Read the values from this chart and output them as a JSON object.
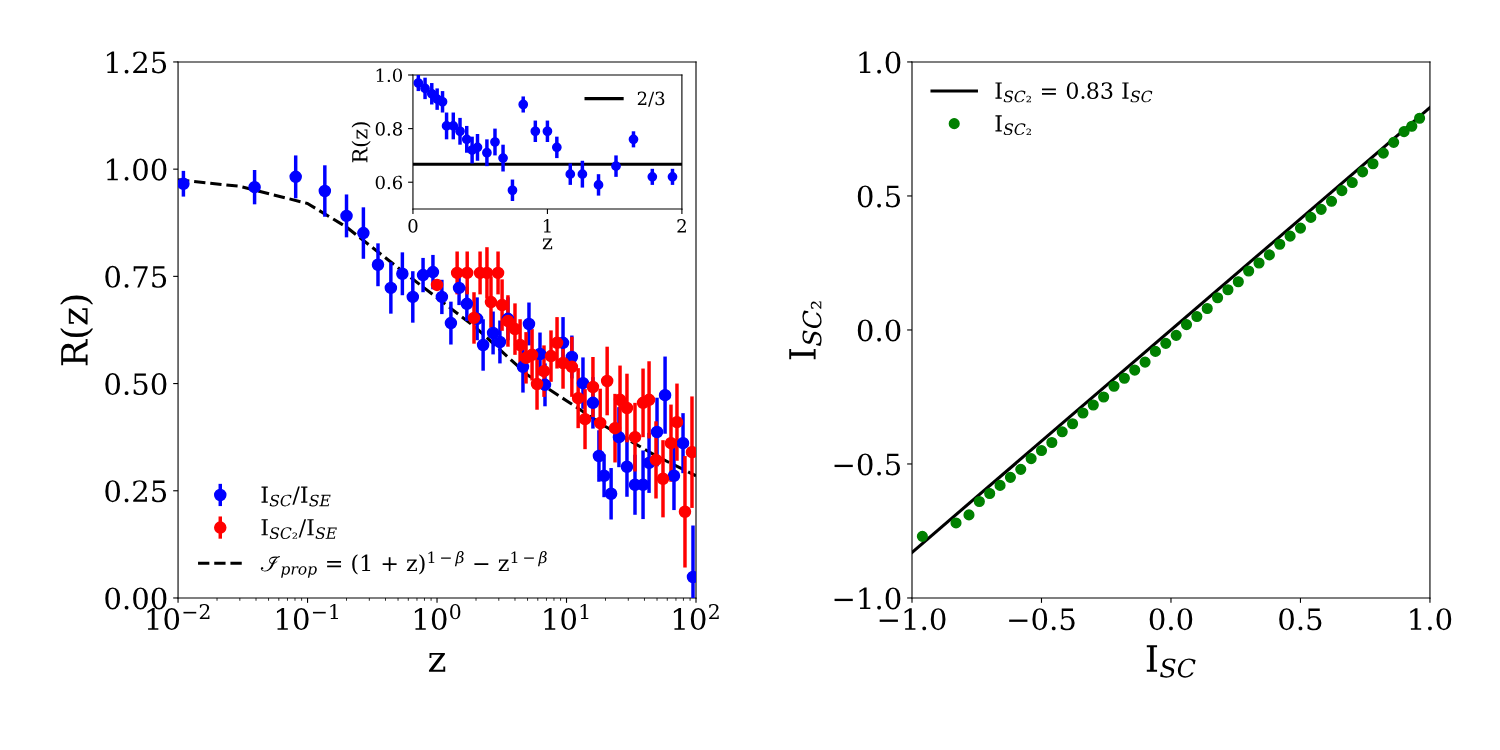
{
  "chart_data": [
    {
      "type": "scatter",
      "xlabel": "z",
      "ylabel": "R(z)",
      "log": "x",
      "legend": "bottom left",
      "marker": "circle",
      "xlim": [
        0.01,
        100
      ],
      "xticks": [
        {
          "value": 0.01,
          "label": "10$^{−2}$"
        },
        {
          "value": 0.1,
          "label": "10$^{−1}$"
        },
        {
          "value": 1,
          "label": "10$^{0}$"
        },
        {
          "value": 10,
          "label": "10$^{1}$"
        },
        {
          "value": 100,
          "label": "10$^{2}$"
        }
      ],
      "ylim": [
        0,
        1.25
      ],
      "yticks": [
        {
          "value": 0,
          "label": "0.00"
        },
        {
          "value": 0.25,
          "label": "0.25"
        },
        {
          "value": 0.5,
          "label": "0.50"
        },
        {
          "value": 0.75,
          "label": "0.75"
        },
        {
          "value": 1,
          "label": "1.00"
        },
        {
          "value": 1.25,
          "label": "1.25"
        }
      ],
      "series": [
        {
          "name": "I$_{SC}$/I$_{SE}$",
          "color": "#0000ff",
          "x": [
            0.011,
            0.039,
            0.081,
            0.136,
            0.2,
            0.27,
            0.35,
            0.44,
            0.54,
            0.65,
            0.78,
            0.93,
            1.09,
            1.28,
            1.48,
            1.7,
            2.04,
            2.27,
            2.71,
            3.06,
            3.53,
            4.61,
            5.13,
            6.24,
            6.82,
            9.4,
            11.0,
            13.4,
            16.0,
            17.8,
            19.5,
            22.1,
            25.4,
            29.3,
            33.8,
            39.0,
            43.4,
            50,
            57.7,
            67.6,
            79.4,
            94.8
          ],
          "values": [
            0.966,
            0.958,
            0.982,
            0.949,
            0.891,
            0.851,
            0.777,
            0.723,
            0.756,
            0.702,
            0.753,
            0.76,
            0.702,
            0.641,
            0.723,
            0.686,
            0.651,
            0.59,
            0.618,
            0.597,
            0.651,
            0.539,
            0.639,
            0.569,
            0.497,
            0.595,
            0.562,
            0.501,
            0.455,
            0.331,
            0.285,
            0.243,
            0.375,
            0.306,
            0.264,
            0.264,
            0.315,
            0.387,
            0.473,
            0.285,
            0.361,
            0.049
          ],
          "errors": [
            0.03,
            0.04,
            0.05,
            0.06,
            0.05,
            0.06,
            0.05,
            0.06,
            0.05,
            0.06,
            0.04,
            0.04,
            0.04,
            0.05,
            0.04,
            0.04,
            0.05,
            0.06,
            0.05,
            0.05,
            0.05,
            0.06,
            0.05,
            0.05,
            0.05,
            0.06,
            0.05,
            0.06,
            0.06,
            0.06,
            0.05,
            0.06,
            0.07,
            0.07,
            0.07,
            0.08,
            0.07,
            0.08,
            0.09,
            0.08,
            0.07,
            0.12
          ]
        },
        {
          "name": "I$_{SC₂}$/I$_{SE}$",
          "color": "#ff0000",
          "x": [
            1.0,
            1.43,
            1.71,
            1.93,
            2.15,
            2.43,
            2.61,
            2.96,
            3.18,
            3.53,
            4.0,
            4.38,
            4.87,
            5.42,
            5.92,
            6.7,
            7.59,
            8.45,
            9.4,
            11.0,
            12.3,
            13.9,
            16.0,
            18.2,
            20.6,
            23.7,
            25.9,
            29.3,
            33.8,
            39.0,
            43.4,
            49.1,
            55.6,
            64.1,
            71.3,
            82.2,
            93.1
          ],
          "values": [
            0.73,
            0.758,
            0.758,
            0.653,
            0.758,
            0.758,
            0.69,
            0.758,
            0.683,
            0.646,
            0.627,
            0.59,
            0.56,
            0.567,
            0.499,
            0.529,
            0.564,
            0.595,
            0.548,
            0.539,
            0.466,
            0.417,
            0.492,
            0.408,
            0.506,
            0.396,
            0.462,
            0.443,
            0.375,
            0.455,
            0.462,
            0.322,
            0.278,
            0.361,
            0.41,
            0.201,
            0.34
          ],
          "errors": [
            null,
            0.05,
            0.05,
            0.06,
            0.05,
            0.06,
            0.06,
            0.05,
            0.06,
            0.06,
            0.06,
            0.06,
            0.06,
            0.06,
            0.06,
            0.06,
            0.06,
            0.06,
            0.06,
            0.07,
            0.07,
            0.07,
            0.07,
            0.08,
            0.08,
            0.08,
            0.08,
            0.08,
            0.08,
            0.08,
            0.09,
            0.09,
            0.09,
            0.09,
            0.09,
            0.13,
            0.13
          ]
        },
        {
          "name": "ℐ$_{prop}$ = (1 + z)$^{1−β}$ − z$^{1−β}$",
          "type": "line",
          "color": "#000000",
          "line_style": "dashed",
          "marker": "none",
          "x": [
            0.01,
            0.03,
            0.1,
            0.2,
            0.5,
            1,
            2,
            5,
            10,
            20,
            50,
            100
          ],
          "values": [
            0.975,
            0.96,
            0.92,
            0.865,
            0.77,
            0.7,
            0.63,
            0.52,
            0.46,
            0.4,
            0.33,
            0.285
          ]
        }
      ]
    },
    {
      "type": "scatter",
      "xlabel": "z",
      "ylabel": "R(z)",
      "legend": "top right",
      "marker": "circle",
      "xlim": [
        0,
        2
      ],
      "xticks": [
        0,
        1,
        2
      ],
      "ylim": [
        0.5,
        1.0
      ],
      "yticks": [
        0.6,
        0.8,
        {
          "value": 1.0,
          "label": "1.0"
        }
      ],
      "series": [
        {
          "name": "2/3",
          "type": "line",
          "color": "#000000",
          "line_style": "solid",
          "marker": "none",
          "x": [
            0,
            2
          ],
          "values": [
            0.667,
            0.667
          ]
        },
        {
          "color": "#0000ff",
          "x": [
            0.04,
            0.09,
            0.14,
            0.18,
            0.22,
            0.25,
            0.3,
            0.35,
            0.4,
            0.44,
            0.48,
            0.55,
            0.61,
            0.67,
            0.74,
            0.82,
            0.91,
            1.0,
            1.07,
            1.17,
            1.26,
            1.38,
            1.51,
            1.64,
            1.78,
            1.93
          ],
          "values": [
            0.97,
            0.95,
            0.93,
            0.91,
            0.9,
            0.81,
            0.81,
            0.79,
            0.76,
            0.72,
            0.73,
            0.71,
            0.75,
            0.69,
            0.57,
            0.89,
            0.79,
            0.79,
            0.73,
            0.63,
            0.63,
            0.59,
            0.66,
            0.76,
            0.62,
            0.62
          ],
          "errors": [
            0.03,
            0.04,
            0.04,
            0.04,
            0.04,
            0.05,
            0.05,
            0.05,
            0.05,
            0.05,
            0.05,
            0.05,
            0.05,
            0.05,
            0.04,
            0.03,
            0.04,
            0.04,
            0.04,
            0.04,
            0.05,
            0.04,
            0.04,
            0.03,
            0.03,
            0.03
          ]
        }
      ]
    },
    {
      "type": "scatter",
      "xlabel": "I$_{SC}$",
      "ylabel": "I$_{SC₂}$",
      "legend": "top left",
      "marker": "circle",
      "xlim": [
        -1,
        1
      ],
      "xticks": [
        {
          "value": -1,
          "label": "−1.0"
        },
        {
          "value": -0.5,
          "label": "−0.5"
        },
        {
          "value": 0,
          "label": "0.0"
        },
        {
          "value": 0.5,
          "label": "0.5"
        },
        {
          "value": 1,
          "label": "1.0"
        }
      ],
      "ylim": [
        -1,
        1
      ],
      "yticks": [
        {
          "value": -1,
          "label": "−1.0"
        },
        {
          "value": -0.5,
          "label": "−0.5"
        },
        {
          "value": 0,
          "label": "0.0"
        },
        {
          "value": 0.5,
          "label": "0.5"
        },
        {
          "value": 1,
          "label": "1.0"
        }
      ],
      "series": [
        {
          "name": "I$_{SC₂}$ = 0.83 I$_{SC}$",
          "type": "line",
          "color": "#000000",
          "line_style": "solid",
          "marker": "none",
          "x": [
            -1,
            1
          ],
          "values": [
            -0.83,
            0.83
          ]
        },
        {
          "name": "I$_{SC₂}$",
          "color": "#008000",
          "x": [
            -0.96,
            -0.83,
            -0.78,
            -0.74,
            -0.7,
            -0.66,
            -0.62,
            -0.58,
            -0.54,
            -0.5,
            -0.46,
            -0.42,
            -0.38,
            -0.34,
            -0.3,
            -0.26,
            -0.22,
            -0.18,
            -0.14,
            -0.1,
            -0.06,
            -0.02,
            0.02,
            0.06,
            0.1,
            0.14,
            0.18,
            0.22,
            0.26,
            0.3,
            0.34,
            0.38,
            0.42,
            0.46,
            0.5,
            0.54,
            0.58,
            0.62,
            0.66,
            0.7,
            0.74,
            0.78,
            0.82,
            0.86,
            0.9,
            0.93,
            0.96
          ],
          "values": [
            -0.77,
            -0.72,
            -0.69,
            -0.64,
            -0.61,
            -0.58,
            -0.55,
            -0.52,
            -0.48,
            -0.45,
            -0.42,
            -0.38,
            -0.35,
            -0.31,
            -0.28,
            -0.25,
            -0.21,
            -0.18,
            -0.15,
            -0.12,
            -0.08,
            -0.05,
            -0.02,
            0.02,
            0.05,
            0.08,
            0.12,
            0.15,
            0.18,
            0.22,
            0.25,
            0.28,
            0.32,
            0.35,
            0.38,
            0.42,
            0.45,
            0.48,
            0.52,
            0.55,
            0.59,
            0.62,
            0.66,
            0.7,
            0.74,
            0.76,
            0.79
          ]
        }
      ]
    }
  ]
}
